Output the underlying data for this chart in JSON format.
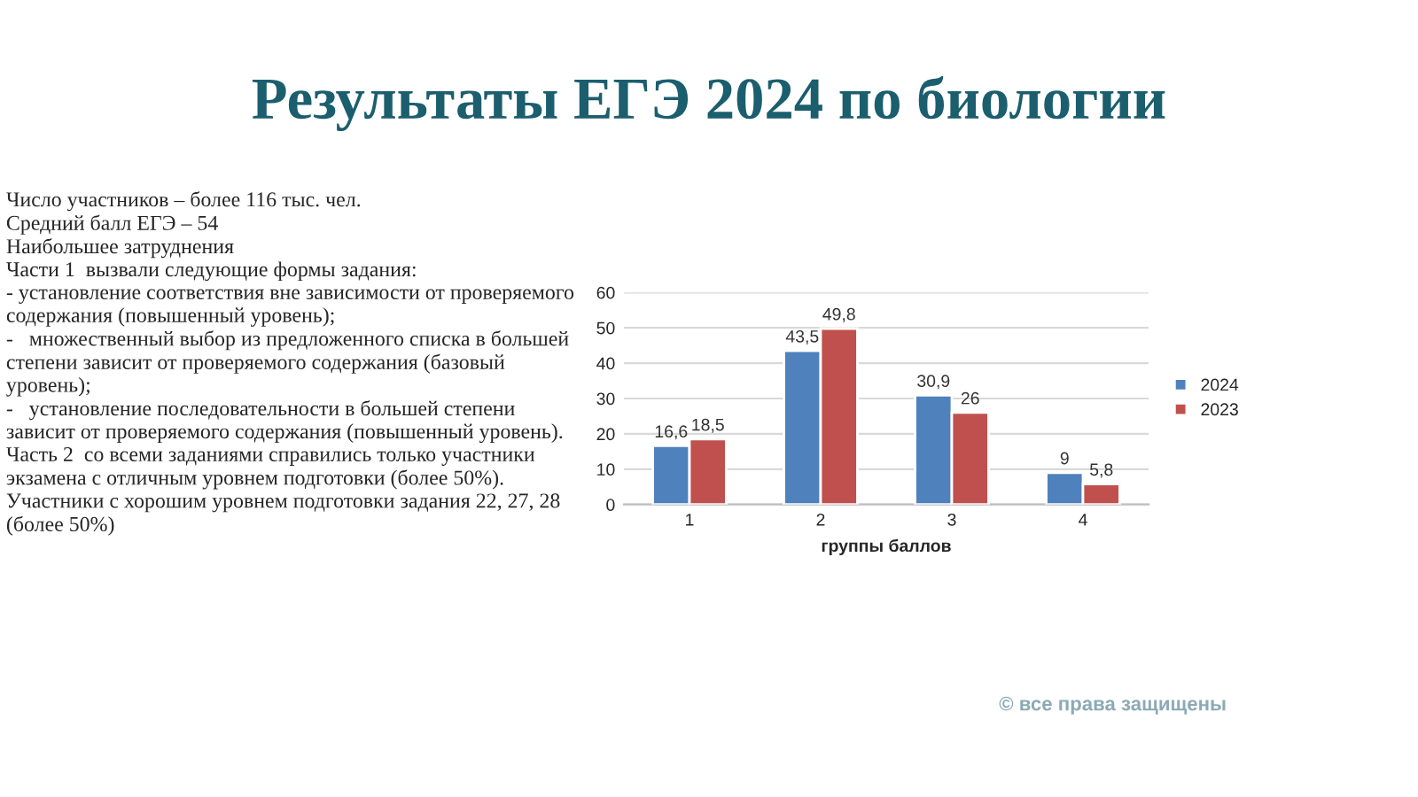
{
  "chart_data": {
    "type": "bar",
    "title": "Результаты ЕГЭ 2024 по биологии",
    "xlabel": "группы баллов",
    "categories": [
      "1",
      "2",
      "3",
      "4"
    ],
    "series": [
      {
        "name": "2024",
        "color": "#4f81bd",
        "values": [
          16.6,
          43.5,
          30.9,
          9
        ],
        "value_labels": [
          "16,6",
          "43,5",
          "30,9",
          "9"
        ]
      },
      {
        "name": "2023",
        "color": "#c0504d",
        "values": [
          18.5,
          49.8,
          26,
          5.8
        ],
        "value_labels": [
          "18,5",
          "49,8",
          "26",
          "5,8"
        ]
      }
    ],
    "ylim": [
      0,
      60
    ],
    "yticks": [
      0,
      10,
      20,
      30,
      40,
      50,
      60
    ],
    "grid": "y",
    "legend": "right",
    "annotations": [
      "Число участников – более 116 тыс. чел.",
      "Средний балл ЕГЭ – 54",
      "Наибольшее затруднения",
      "Части 1  вызвали следующие формы задания:",
      "- установление соответствия вне зависимости от проверяемого содержания (повышенный уровень);",
      "-   множественный выбор из предложенного списка в большей степени зависит от проверяемого содержания (базовый уровень);",
      "-   установление последовательности в большей степени зависит от проверяемого содержания (повышенный уровень).",
      "Часть 2  со всеми заданиями справились только участники экзамена с отличным уровнем подготовки (более 50%). Участники с хорошим уровнем подготовки задания 22, 27, 28 (более 50%)",
      "© все права защищены"
    ]
  }
}
